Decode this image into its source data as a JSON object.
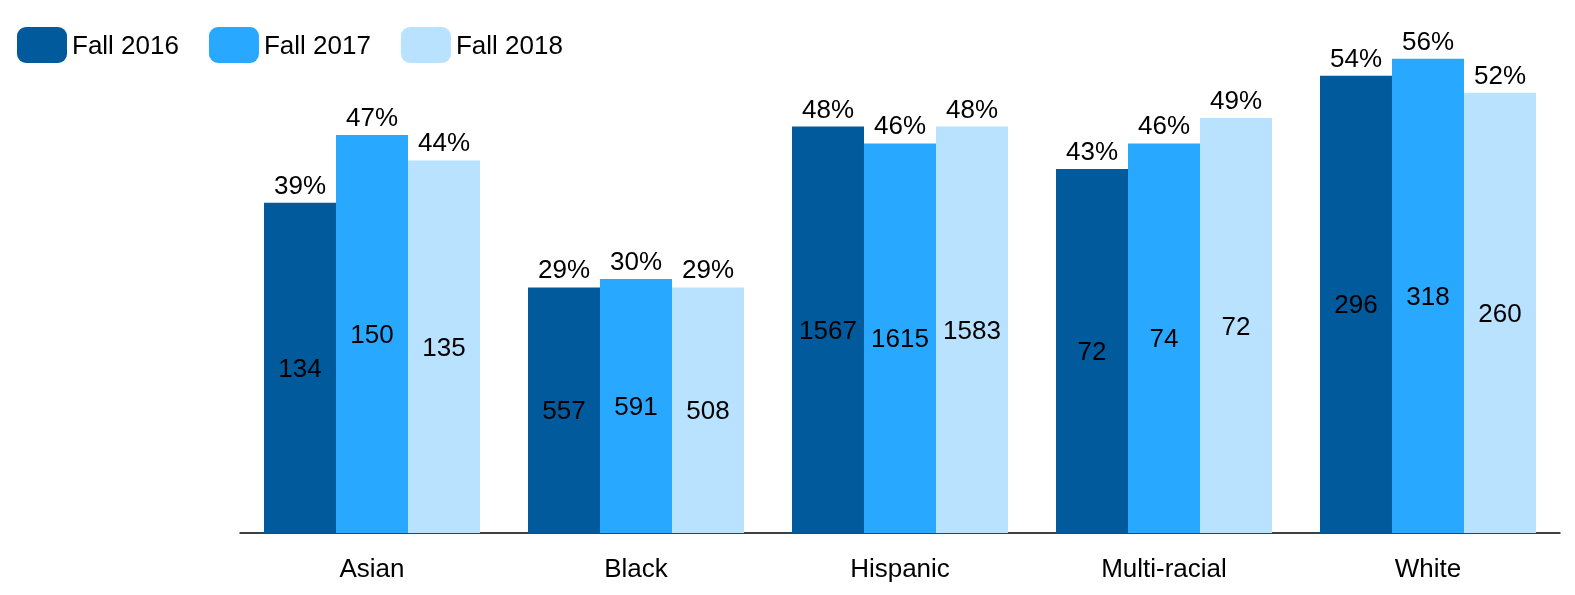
{
  "chart_data": {
    "type": "bar",
    "categories": [
      "Asian",
      "Black",
      "Hispanic",
      "Multi-racial",
      "White"
    ],
    "series": [
      {
        "name": "Fall 2016",
        "color": "#005a9c",
        "values": [
          39,
          29,
          48,
          43,
          54
        ],
        "value_labels": [
          "39%",
          "29%",
          "48%",
          "43%",
          "54%"
        ]
      },
      {
        "name": "Fall 2017",
        "color": "#29a8ff",
        "values": [
          47,
          30,
          46,
          46,
          56
        ],
        "value_labels": [
          "47%",
          "30%",
          "46%",
          "46%",
          "56%"
        ]
      },
      {
        "name": "Fall 2018",
        "color": "#b8e2ff",
        "values": [
          44,
          29,
          48,
          49,
          52
        ],
        "value_labels": [
          "44%",
          "29%",
          "48%",
          "49%",
          "52%"
        ]
      }
    ],
    "annotations": [
      "134",
      "150",
      "135",
      "557",
      "591",
      "508",
      "1567",
      "1615",
      "1583",
      "72",
      "74",
      "72",
      "296",
      "318",
      "260"
    ],
    "tick_labels": "x",
    "grid": false,
    "legend": "top left"
  }
}
